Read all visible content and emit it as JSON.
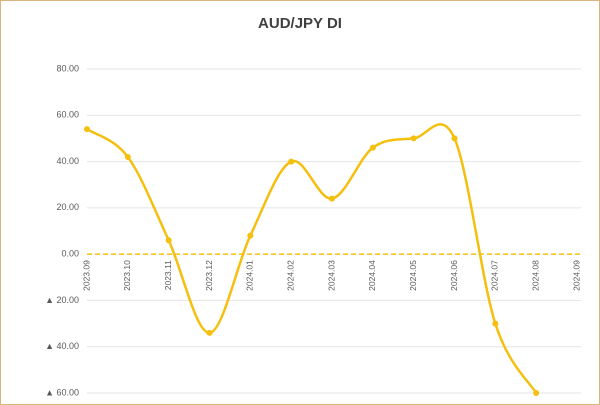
{
  "chart_data": {
    "type": "line",
    "title": "AUD/JPY  DI",
    "categories": [
      "2023.09",
      "2023.10",
      "2023.11",
      "2023.12",
      "2024.01",
      "2024.02",
      "2024.03",
      "2024.04",
      "2024.05",
      "2024.06",
      "2024.07",
      "2024.08",
      "2024.09"
    ],
    "series": [
      {
        "name": "DI",
        "color": "#f5bf0f",
        "values": [
          54,
          42,
          6,
          -34,
          8,
          40,
          24,
          46,
          50,
          50,
          -30,
          -60,
          null
        ]
      }
    ],
    "ylim": [
      -60,
      80
    ],
    "yticks": [
      {
        "value": -60,
        "label": "▲ 60.00"
      },
      {
        "value": -40,
        "label": "▲ 40.00"
      },
      {
        "value": -20,
        "label": "▲ 20.00"
      },
      {
        "value": 0,
        "label": "0.00"
      },
      {
        "value": 20,
        "label": "20.00"
      },
      {
        "value": 40,
        "label": "40.00"
      },
      {
        "value": 60,
        "label": "60.00"
      },
      {
        "value": 80,
        "label": "80.00"
      }
    ],
    "negative_tick_color": "#e00000",
    "zero_line_color": "#f5bf0f",
    "grid": true,
    "smooth": true
  }
}
